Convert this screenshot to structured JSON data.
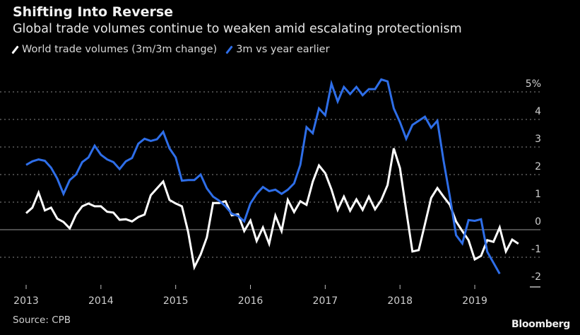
{
  "chart_data": {
    "type": "line",
    "title": "Shifting Into Reverse",
    "subtitle": "Global trade volumes continue to weaken amid escalating protectionism",
    "xlabel": "",
    "ylabel": "",
    "x_start": "2013-01",
    "x_frequency": "monthly",
    "x_ticks": [
      "2013",
      "2014",
      "2015",
      "2016",
      "2017",
      "2018",
      "2019"
    ],
    "y_ticks": [
      "5%",
      "4",
      "3",
      "2",
      "1",
      "0",
      "-1",
      "-2"
    ],
    "y_tick_values": [
      5,
      4,
      3,
      2,
      1,
      0,
      -1,
      -2
    ],
    "ylim": [
      -2,
      5
    ],
    "xlim_years": [
      2013,
      2019.6
    ],
    "grid": true,
    "legend_position": "top-left",
    "series": [
      {
        "name": "World trade volumes (3m/3m change)",
        "color": "#ffffff",
        "values": [
          0.6,
          0.8,
          1.35,
          0.7,
          0.8,
          0.4,
          0.28,
          0.05,
          0.55,
          0.85,
          0.95,
          0.85,
          0.85,
          0.65,
          0.62,
          0.36,
          0.38,
          0.3,
          0.46,
          0.55,
          1.25,
          1.5,
          1.75,
          1.08,
          0.95,
          0.85,
          -0.08,
          -1.36,
          -0.9,
          -0.28,
          0.97,
          0.97,
          1.03,
          0.52,
          0.56,
          -0.05,
          0.33,
          -0.41,
          0.08,
          -0.51,
          0.51,
          -0.05,
          1.08,
          0.64,
          1.03,
          0.9,
          1.74,
          2.33,
          2.05,
          1.46,
          0.72,
          1.2,
          0.69,
          1.1,
          0.72,
          1.2,
          0.74,
          1.08,
          1.62,
          2.95,
          2.23,
          0.7,
          -0.79,
          -0.74,
          0.2,
          1.15,
          1.51,
          1.2,
          0.9,
          0.3,
          -0.05,
          -0.38,
          -1.08,
          -0.95,
          -0.38,
          -0.44,
          0.08,
          -0.79,
          -0.36,
          -0.51
        ]
      },
      {
        "name": "3m vs year earlier",
        "color": "#2e6ee8",
        "values": [
          2.35,
          2.48,
          2.55,
          2.5,
          2.25,
          1.85,
          1.3,
          1.8,
          2.0,
          2.45,
          2.62,
          3.05,
          2.72,
          2.55,
          2.45,
          2.2,
          2.48,
          2.6,
          3.12,
          3.3,
          3.22,
          3.28,
          3.55,
          2.95,
          2.62,
          1.78,
          1.8,
          1.8,
          2.0,
          1.5,
          1.2,
          1.05,
          0.85,
          0.58,
          0.5,
          0.3,
          0.95,
          1.3,
          1.55,
          1.4,
          1.45,
          1.3,
          1.45,
          1.68,
          2.35,
          3.72,
          3.5,
          4.4,
          4.15,
          5.3,
          4.65,
          5.18,
          4.92,
          5.18,
          4.88,
          5.1,
          5.1,
          5.45,
          5.38,
          4.4,
          3.9,
          3.3,
          3.8,
          3.95,
          4.1,
          3.7,
          3.95,
          2.5,
          1.2,
          -0.2,
          -0.5,
          0.35,
          0.32,
          0.38,
          -0.8,
          -1.2,
          -1.6
        ]
      }
    ]
  },
  "source": "Source: CPB",
  "brand": "Bloomberg"
}
